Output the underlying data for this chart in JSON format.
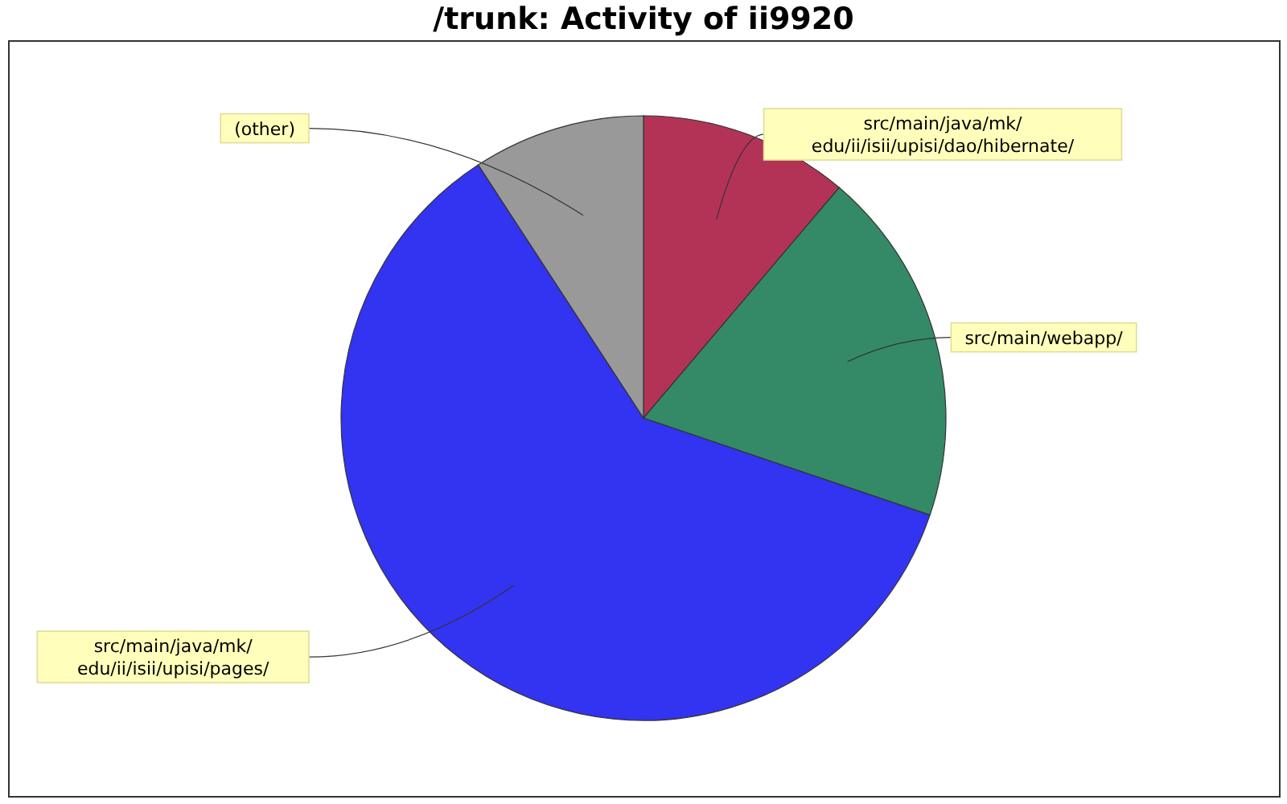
{
  "chart_data": {
    "type": "pie",
    "title": "/trunk: Activity of ii9920",
    "categories": [
      "src/main/java/mk/edu/ii/isii/upisi/dao/hibernate/",
      "src/main/webapp/",
      "src/main/java/mk/edu/ii/isii/upisi/pages/",
      "(other)"
    ],
    "values": [
      11.2,
      19.0,
      60.6,
      9.2
    ],
    "colors": [
      "#b33357",
      "#348a66",
      "#3333f2",
      "#999999"
    ]
  }
}
